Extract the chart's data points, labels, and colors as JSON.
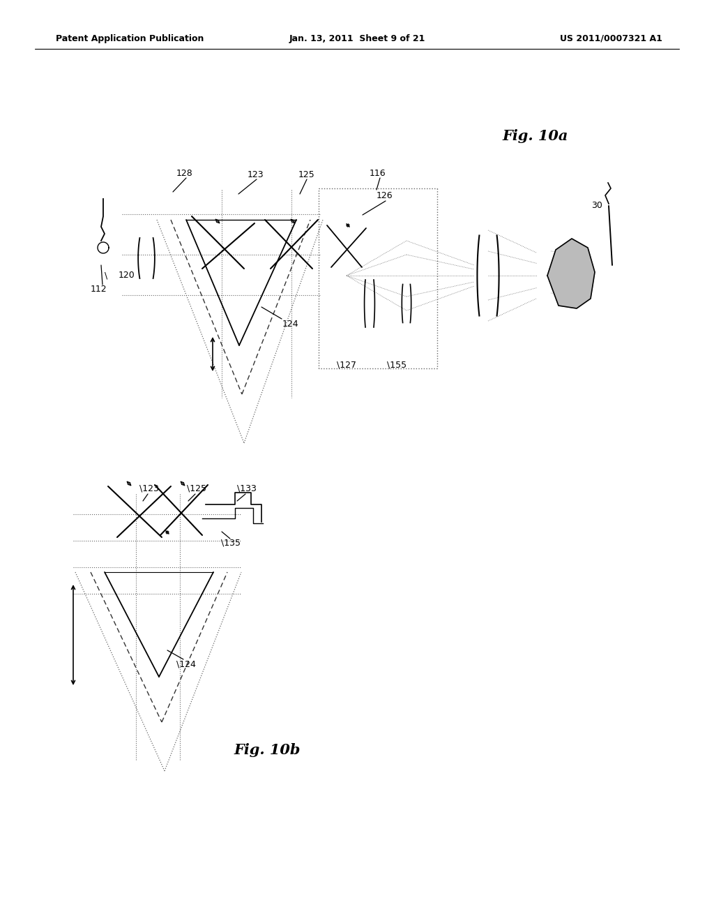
{
  "header_left": "Patent Application Publication",
  "header_mid": "Jan. 13, 2011  Sheet 9 of 21",
  "header_right": "US 2011/0007321 A1",
  "fig10a_label": "Fig. 10a",
  "fig10b_label": "Fig. 10b",
  "bg_color": "#ffffff",
  "line_color": "#000000",
  "dashed_color": "#555555"
}
